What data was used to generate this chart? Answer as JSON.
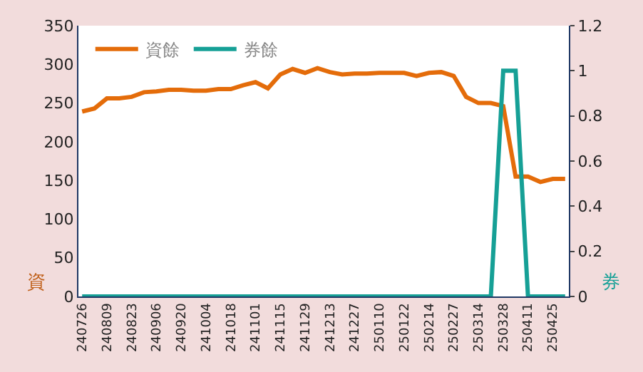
{
  "chart_data": {
    "type": "line",
    "categories": [
      "240726",
      null,
      "240809",
      null,
      "240823",
      null,
      "240906",
      null,
      "240920",
      null,
      "241004",
      null,
      "241018",
      null,
      "241101",
      null,
      "241115",
      null,
      "241129",
      null,
      "241213",
      null,
      "241227",
      null,
      "250110",
      null,
      "250122",
      null,
      "250214",
      null,
      "250227",
      null,
      "250314",
      null,
      "250328",
      null,
      "250411",
      null,
      "250425",
      null
    ],
    "series": [
      {
        "name": "資餘",
        "color": "#e46c0a",
        "values": [
          239,
          243,
          256,
          256,
          258,
          264,
          265,
          267,
          267,
          266,
          266,
          268,
          268,
          273,
          277,
          269,
          287,
          294,
          289,
          295,
          290,
          287,
          288,
          288,
          289,
          289,
          289,
          285,
          289,
          290,
          285,
          258,
          250,
          250,
          246,
          155,
          155,
          148,
          152,
          152
        ]
      },
      {
        "name": "券餘",
        "color": "#16a096",
        "axis": "y2",
        "values": [
          0,
          0,
          0,
          0,
          0,
          0,
          0,
          0,
          0,
          0,
          0,
          0,
          0,
          0,
          0,
          0,
          0,
          0,
          0,
          0,
          0,
          0,
          0,
          0,
          0,
          0,
          0,
          0,
          0,
          0,
          0,
          0,
          0,
          0,
          1,
          1,
          0,
          0,
          0,
          0
        ]
      }
    ],
    "ylabel": "資",
    "y2label": "券",
    "ylim": [
      0,
      350
    ],
    "yticks": [
      0,
      50,
      100,
      150,
      200,
      250,
      300,
      350
    ],
    "y2lim": [
      0,
      1.2
    ],
    "y2ticks": [
      {
        "value": 0,
        "label": "0"
      },
      0.2,
      0.4,
      0.6,
      0.8,
      1,
      1.2
    ],
    "legend": "top left"
  }
}
